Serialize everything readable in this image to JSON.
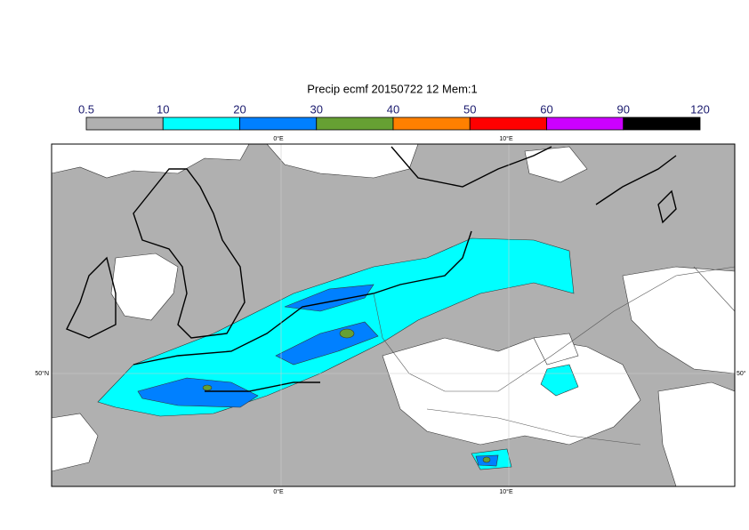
{
  "title": "Precip ecmf 20150722 12 Mem:1",
  "colorbar": {
    "bounds": [
      0.5,
      10,
      20,
      30,
      40,
      50,
      60,
      90,
      120
    ],
    "colors": [
      "#b0b0b0",
      "#00ffff",
      "#0080ff",
      "#66a033",
      "#ff8000",
      "#ff0000",
      "#cc00ff",
      "#000000"
    ]
  },
  "map_labels": {
    "lon_top": [
      "0°E",
      "10°E"
    ],
    "lon_bottom": [
      "0°E",
      "10°E"
    ],
    "lat_left": "50°N",
    "lat_right": "50°"
  }
}
